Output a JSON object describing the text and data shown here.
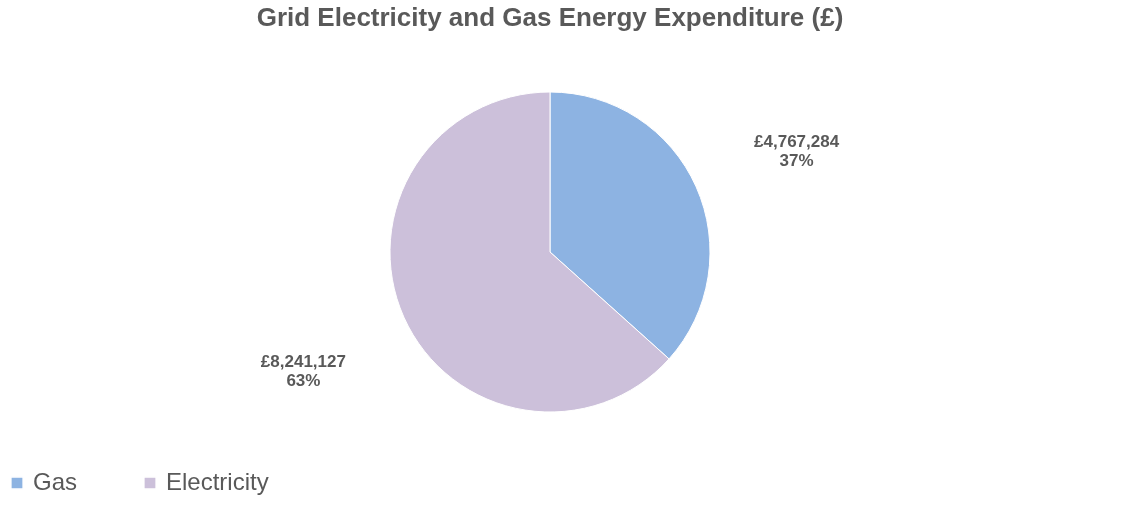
{
  "chart_data": {
    "type": "pie",
    "title": "Grid Electricity and Gas Energy Expenditure (£)",
    "categories": [
      "Gas",
      "Electricity"
    ],
    "values": [
      4767284,
      8241127
    ],
    "colors": [
      "#8db3e2",
      "#ccc0da"
    ],
    "value_labels": [
      "£4,767,284\n37%",
      "£8,241,127\n63%"
    ],
    "legend": "bottom"
  }
}
